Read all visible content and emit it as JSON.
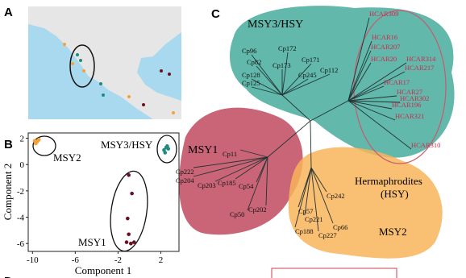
{
  "panel_labels": [
    "A",
    "B",
    "C",
    "D"
  ],
  "chart_data": {
    "type": "scatter",
    "x_label": "Component 1",
    "y_label": "Component 2",
    "xlim": [
      -10.4,
      3.7
    ],
    "ylim": [
      -6.6,
      2.4
    ],
    "xticks": [
      -10,
      -6,
      -2,
      2
    ],
    "yticks": [
      2,
      0,
      -2,
      -4,
      -6
    ],
    "series": [
      {
        "name": "MSY2",
        "color": "#f2a33a",
        "x": [
          -9.8,
          -9.6,
          -9.4,
          -9.7,
          -9.5
        ],
        "values": [
          1.8,
          1.7,
          1.9,
          1.6,
          1.8
        ]
      },
      {
        "name": "MSY3/HSY",
        "color": "#1f8a80",
        "x": [
          2.3,
          2.5,
          2.7,
          2.4,
          2.6
        ],
        "values": [
          1.1,
          1.3,
          1.2,
          0.9,
          1.4
        ]
      },
      {
        "name": "MSY1",
        "color": "#6b1020",
        "x": [
          -1,
          -0.7,
          -1.1,
          -1,
          -1.2,
          -0.8,
          -0.5
        ],
        "values": [
          -0.8,
          -2.2,
          -4.1,
          -5.3,
          -5.9,
          -6,
          -5.9
        ]
      }
    ]
  },
  "tree": {
    "groups": [
      "MSY3/HSY",
      "MSY1",
      "Hermaphrodites",
      "(HSY)",
      "MSY2"
    ],
    "msy3": [
      "Cp96",
      "Cp172",
      "Cp82",
      "Cp173",
      "Cp171",
      "Cp128",
      "Cp245",
      "Cp112",
      "Cp125"
    ],
    "hcar": [
      "HCAR309",
      "HCAR16",
      "HCAR207",
      "HCAR20",
      "HCAR314",
      "HCAR217",
      "HCAR17",
      "HCAR27",
      "HCAR302",
      "HCAR196",
      "HCAR321",
      "HCAR310"
    ],
    "msy1": [
      "Cp11",
      "Cp222",
      "Cp204",
      "Cp203",
      "Cp185",
      "Cp54",
      "Cp202",
      "Cp50"
    ],
    "msy2": [
      "Cp242",
      "Cp57",
      "Cp221",
      "Cp66",
      "Cp188",
      "Cp227"
    ]
  }
}
